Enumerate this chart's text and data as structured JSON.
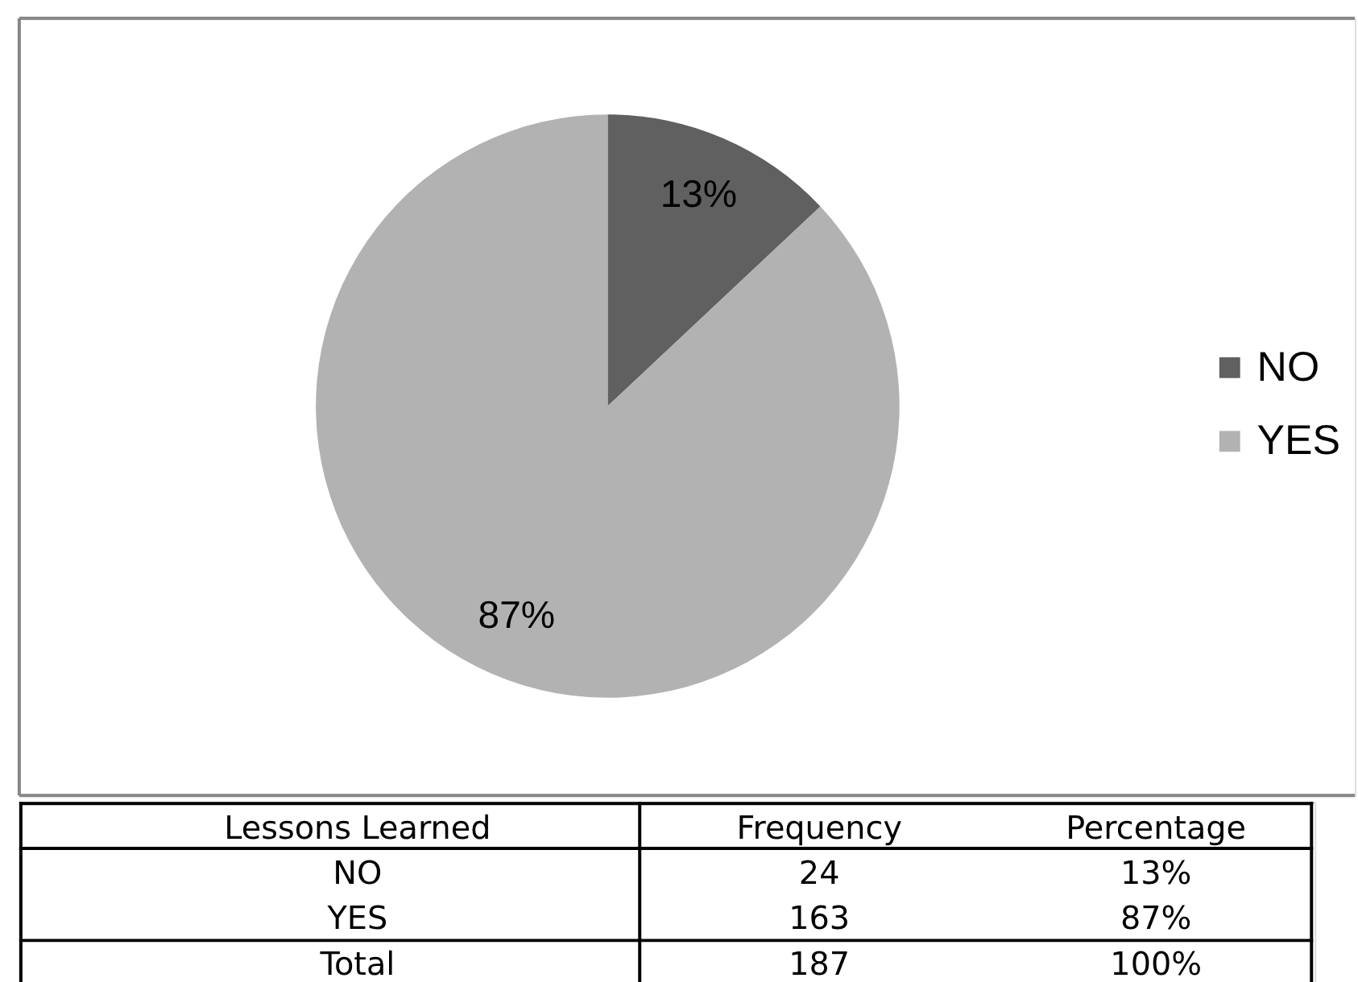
{
  "chart_data": [
    {
      "type": "pie",
      "categories": [
        "NO",
        "YES"
      ],
      "values": [
        13,
        87
      ],
      "colors": [
        "#606060",
        "#b2b2b2"
      ],
      "value_labels": [
        "13%",
        "87%"
      ],
      "legend": "right"
    },
    {
      "type": "other",
      "xlabel": "Lessons Learned",
      "categories": [
        "NO",
        "YES",
        "Total"
      ],
      "series": [
        {
          "name": "Frequency",
          "values": [
            24,
            163,
            187
          ]
        },
        {
          "name": "Percentage",
          "values": [
            13,
            87,
            100
          ],
          "value_labels": [
            "13%",
            "87%",
            "100%"
          ]
        }
      ],
      "data_labels": true
    }
  ]
}
